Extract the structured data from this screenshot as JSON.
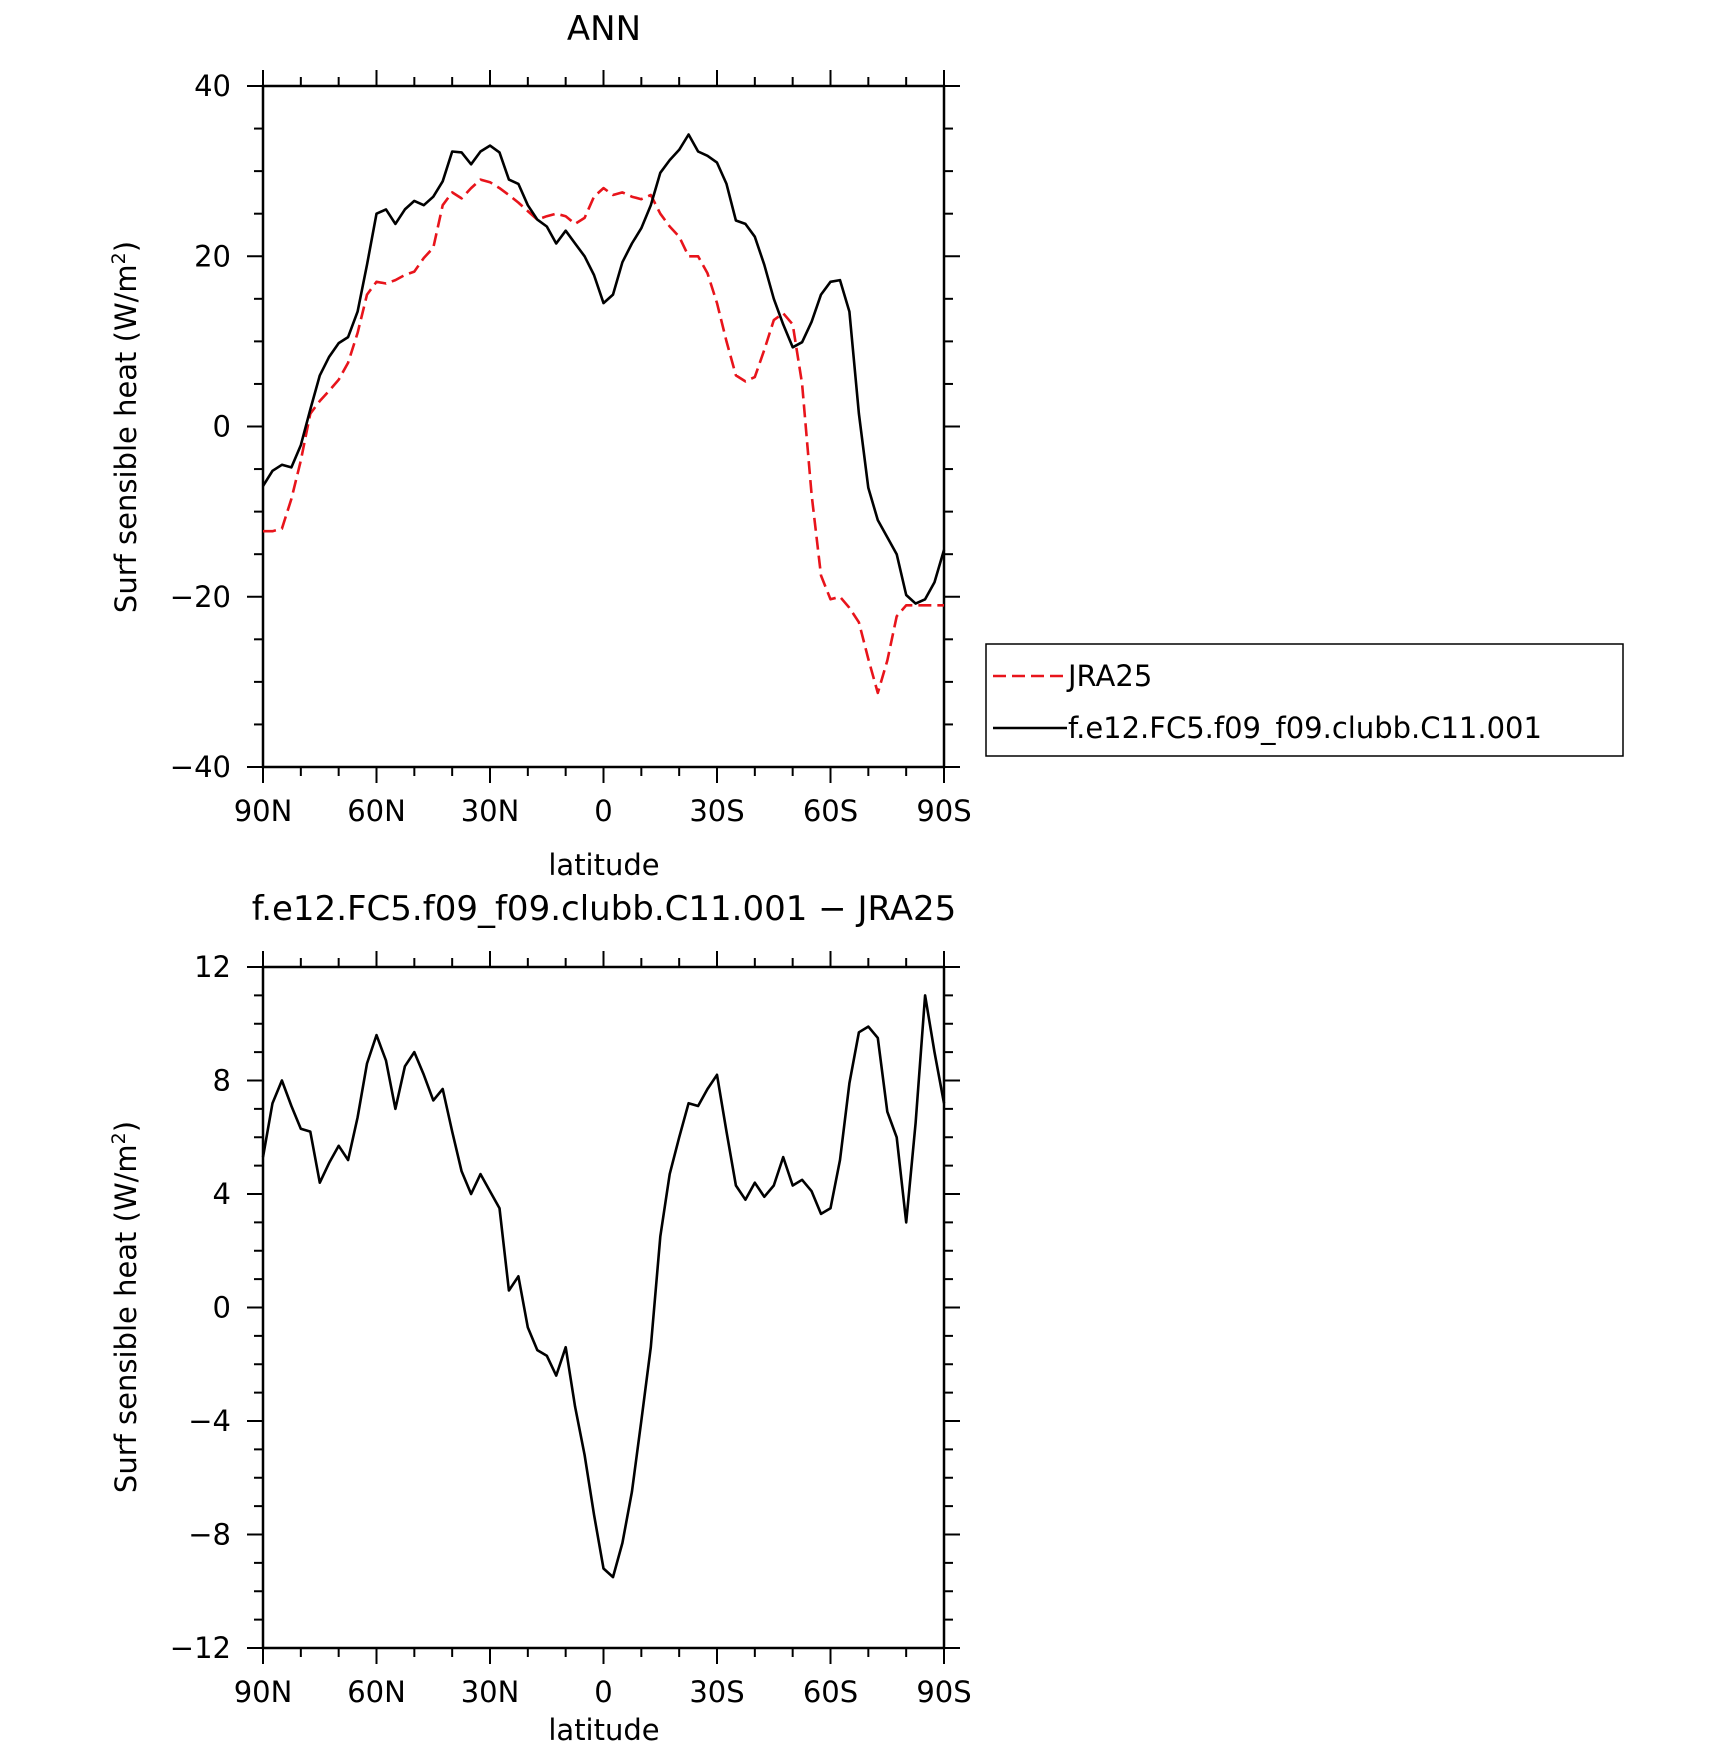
{
  "chart_data": [
    {
      "type": "line",
      "title": "ANN",
      "xlabel": "latitude",
      "ylabel": "Surf sensible heat (W/m",
      "ylabel_sup": "2",
      "ylabel_close": ")",
      "xlim": [
        90,
        -90
      ],
      "ylim": [
        -40,
        40
      ],
      "xticks": [
        {
          "v": 90,
          "label": "90N"
        },
        {
          "v": 60,
          "label": "60N"
        },
        {
          "v": 30,
          "label": "30N"
        },
        {
          "v": 0,
          "label": "0"
        },
        {
          "v": -30,
          "label": "30S"
        },
        {
          "v": -60,
          "label": "60S"
        },
        {
          "v": -90,
          "label": "90S"
        }
      ],
      "yticks": [
        40,
        20,
        0,
        -20,
        -40
      ],
      "y_minor_step": 5,
      "x_minor_step": 10,
      "legend": {
        "position": "right",
        "entries": [
          "JRA25",
          "f.e12.FC5.f09_f09.clubb.C11.001"
        ]
      },
      "series": [
        {
          "name": "JRA25",
          "color": "#e8141b",
          "dash": "dashed",
          "x": [
            90,
            87.5,
            85,
            82.5,
            80,
            77.5,
            75,
            72.5,
            70,
            67.5,
            65,
            62.5,
            60,
            57.5,
            55,
            52.5,
            50,
            47.5,
            45,
            42.5,
            40,
            37.5,
            35,
            32.5,
            30,
            27.5,
            25,
            22.5,
            20,
            17.5,
            15,
            12.5,
            10,
            7.5,
            5,
            2.5,
            0,
            -2.5,
            -5,
            -7.5,
            -10,
            -12.5,
            -15,
            -17.5,
            -20,
            -22.5,
            -25,
            -27.5,
            -30,
            -32.5,
            -35,
            -37.5,
            -40,
            -42.5,
            -45,
            -47.5,
            -50,
            -52.5,
            -55,
            -57.5,
            -60,
            -62.5,
            -65,
            -67.5,
            -70,
            -72.5,
            -75,
            -77.5,
            -80,
            -82.5,
            -85,
            -87.5,
            -90
          ],
          "y": [
            -12.3,
            -12.3,
            -12.0,
            -8.5,
            -4.0,
            1.5,
            3.0,
            4.2,
            5.5,
            7.5,
            11.0,
            15.5,
            17.0,
            16.8,
            17.2,
            17.8,
            18.2,
            19.8,
            21.0,
            26.0,
            27.5,
            26.8,
            28.0,
            29.0,
            28.7,
            28.0,
            27.2,
            26.3,
            25.3,
            24.3,
            24.7,
            25.0,
            24.7,
            23.8,
            24.5,
            27.0,
            28.0,
            27.2,
            27.5,
            27.0,
            26.7,
            27.2,
            25.0,
            23.5,
            22.3,
            20.0,
            20.0,
            18.0,
            14.5,
            10.0,
            6.0,
            5.3,
            5.8,
            9.0,
            12.5,
            13.3,
            12.0,
            5.0,
            -8.0,
            -17.5,
            -20.3,
            -20.0,
            -21.3,
            -23.0,
            -27.3,
            -31.3,
            -27.5,
            -22.3,
            -21.0,
            -21.0,
            -21.0,
            -21.0,
            -21.0
          ]
        },
        {
          "name": "f.e12.FC5.f09_f09.clubb.C11.001",
          "color": "#000000",
          "dash": "solid",
          "x": [
            90,
            87.5,
            85,
            82.5,
            80,
            77.5,
            75,
            72.5,
            70,
            67.5,
            65,
            62.5,
            60,
            57.5,
            55,
            52.5,
            50,
            47.5,
            45,
            42.5,
            40,
            37.5,
            35,
            32.5,
            30,
            27.5,
            25,
            22.5,
            20,
            17.5,
            15,
            12.5,
            10,
            7.5,
            5,
            2.5,
            0,
            -2.5,
            -5,
            -7.5,
            -10,
            -12.5,
            -15,
            -17.5,
            -20,
            -22.5,
            -25,
            -27.5,
            -30,
            -32.5,
            -35,
            -37.5,
            -40,
            -42.5,
            -45,
            -47.5,
            -50,
            -52.5,
            -55,
            -57.5,
            -60,
            -62.5,
            -65,
            -67.5,
            -70,
            -72.5,
            -75,
            -77.5,
            -80,
            -82.5,
            -85,
            -87.5,
            -90
          ],
          "y": [
            -7.0,
            -5.2,
            -4.5,
            -4.8,
            -2.2,
            2.0,
            6.0,
            8.2,
            9.8,
            10.5,
            13.5,
            19.0,
            25.0,
            25.5,
            23.8,
            25.5,
            26.5,
            26.0,
            27.0,
            28.8,
            32.3,
            32.2,
            30.8,
            32.3,
            33.0,
            32.2,
            29.0,
            28.5,
            26.0,
            24.3,
            23.5,
            21.5,
            23.0,
            21.5,
            20.0,
            17.8,
            14.5,
            15.5,
            19.3,
            21.5,
            23.3,
            26.0,
            29.8,
            31.3,
            32.5,
            34.3,
            32.3,
            31.8,
            31.0,
            28.5,
            24.2,
            23.8,
            22.3,
            19.0,
            15.0,
            12.0,
            9.3,
            9.9,
            12.3,
            15.5,
            17.0,
            17.2,
            13.5,
            1.5,
            -7.2,
            -11.0,
            -13.0,
            -15.0,
            -19.8,
            -20.8,
            -20.3,
            -18.3,
            -14.5
          ]
        }
      ]
    },
    {
      "type": "line",
      "title": "f.e12.FC5.f09_f09.clubb.C11.001 − JRA25",
      "xlabel": "latitude",
      "ylabel": "Surf sensible heat (W/m",
      "ylabel_sup": "2",
      "ylabel_close": ")",
      "xlim": [
        90,
        -90
      ],
      "ylim": [
        -12,
        12
      ],
      "xticks": [
        {
          "v": 90,
          "label": "90N"
        },
        {
          "v": 60,
          "label": "60N"
        },
        {
          "v": 30,
          "label": "30N"
        },
        {
          "v": 0,
          "label": "0"
        },
        {
          "v": -30,
          "label": "30S"
        },
        {
          "v": -60,
          "label": "60S"
        },
        {
          "v": -90,
          "label": "90S"
        }
      ],
      "yticks": [
        12,
        8,
        4,
        0,
        -4,
        -8,
        -12
      ],
      "y_minor_step": 1,
      "x_minor_step": 10,
      "series": [
        {
          "color": "#000000",
          "dash": "solid",
          "x": [
            90,
            87.5,
            85,
            82.5,
            80,
            77.5,
            75,
            72.5,
            70,
            67.5,
            65,
            62.5,
            60,
            57.5,
            55,
            52.5,
            50,
            47.5,
            45,
            42.5,
            40,
            37.5,
            35,
            32.5,
            30,
            27.5,
            25,
            22.5,
            20,
            17.5,
            15,
            12.5,
            10,
            7.5,
            5,
            2.5,
            0,
            -2.5,
            -5,
            -7.5,
            -10,
            -12.5,
            -15,
            -17.5,
            -20,
            -22.5,
            -25,
            -27.5,
            -30,
            -32.5,
            -35,
            -37.5,
            -40,
            -42.5,
            -45,
            -47.5,
            -50,
            -52.5,
            -55,
            -57.5,
            -60,
            -62.5,
            -65,
            -67.5,
            -70,
            -72.5,
            -75,
            -77.5,
            -80,
            -82.5,
            -85,
            -87.5,
            -90
          ],
          "y": [
            5.3,
            7.2,
            8.0,
            7.1,
            6.3,
            6.2,
            4.4,
            5.1,
            5.7,
            5.2,
            6.7,
            8.6,
            9.6,
            8.7,
            7.0,
            8.5,
            9.0,
            8.2,
            7.3,
            7.7,
            6.2,
            4.8,
            4.0,
            4.7,
            4.1,
            3.5,
            0.6,
            1.1,
            -0.7,
            -1.5,
            -1.7,
            -2.4,
            -1.4,
            -3.5,
            -5.2,
            -7.3,
            -9.2,
            -9.5,
            -8.3,
            -6.5,
            -4.0,
            -1.4,
            2.5,
            4.7,
            6.0,
            7.2,
            7.1,
            7.7,
            8.2,
            6.2,
            4.3,
            3.8,
            4.4,
            3.9,
            4.3,
            5.3,
            4.3,
            4.5,
            4.1,
            3.3,
            3.5,
            5.2,
            7.9,
            9.7,
            9.9,
            9.5,
            6.9,
            6.0,
            3.0,
            6.5,
            11.0,
            9.0,
            7.2
          ]
        }
      ]
    }
  ]
}
